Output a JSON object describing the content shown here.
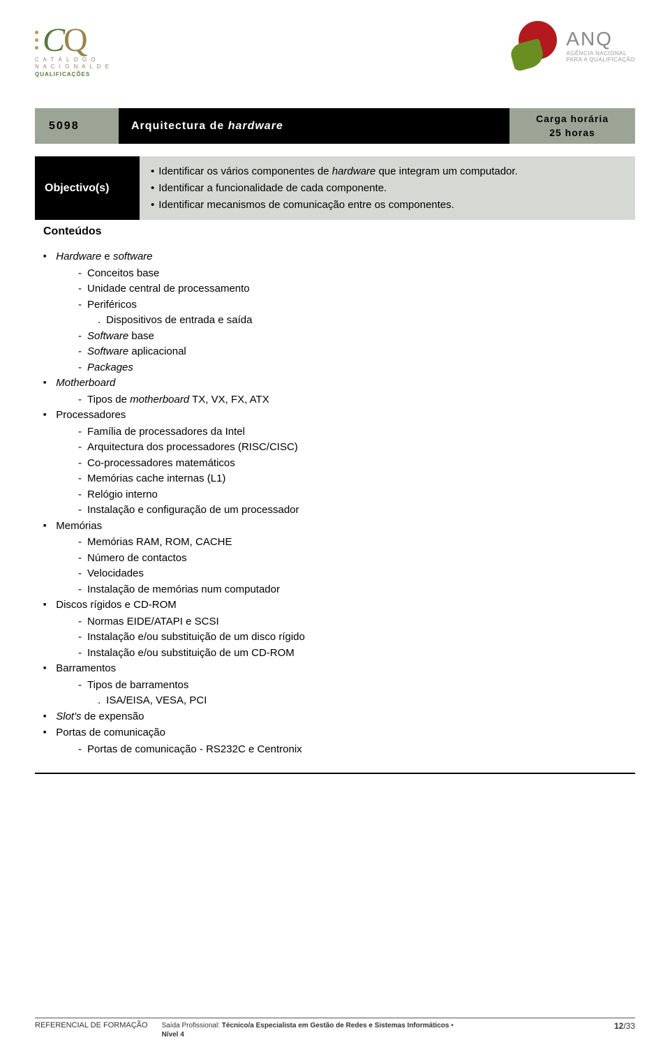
{
  "logo_left": {
    "line1": "C A T Á L O G O",
    "line2": "N A C I O N A L   D E",
    "line3": "QUALIFICAÇÕES"
  },
  "logo_right": {
    "title": "ANQ",
    "sub1": "AGÊNCIA NACIONAL",
    "sub2": "PARA A QUALIFICAÇÃO"
  },
  "title_bar": {
    "code": "5098",
    "title_pre": "Arquitectura de ",
    "title_it": "hardware",
    "hours_l1": "Carga horária",
    "hours_l2": "25 horas"
  },
  "objectives": {
    "label": "Objectivo(s)",
    "items": [
      {
        "pre": "Identificar os vários componentes de ",
        "it": "hardware",
        "post": " que integram um computador."
      },
      {
        "pre": "Identificar a funcionalidade de cada componente.",
        "it": "",
        "post": ""
      },
      {
        "pre": "Identificar mecanismos de comunicação entre os componentes.",
        "it": "",
        "post": ""
      }
    ]
  },
  "conteudos_label": "Conteúdos",
  "content": [
    {
      "title_it": "Hardware",
      "title_mid": " e ",
      "title_it2": "software",
      "sub": [
        {
          "t": "Conceitos base"
        },
        {
          "t": "Unidade central de processamento"
        },
        {
          "t": "Periféricos",
          "sub3": [
            {
              "t": "Dispositivos de entrada e saída"
            }
          ]
        },
        {
          "pre_it": "Software",
          "post": " base"
        },
        {
          "pre_it": "Software",
          "post": " aplicacional"
        },
        {
          "pre_it": "Packages",
          "post": ""
        }
      ]
    },
    {
      "title_it": "Motherboard",
      "sub": [
        {
          "pre": "Tipos de ",
          "mid_it": "motherboard",
          "post": " TX, VX, FX, ATX"
        }
      ]
    },
    {
      "title": "Processadores",
      "sub": [
        {
          "t": "Família de processadores da Intel"
        },
        {
          "t": "Arquitectura dos processadores (RISC/CISC)"
        },
        {
          "t": "Co-processadores matemáticos"
        },
        {
          "t": "Memórias cache internas (L1)"
        },
        {
          "t": "Relógio interno"
        },
        {
          "t": "Instalação e configuração de um processador"
        }
      ]
    },
    {
      "title": "Memórias",
      "sub": [
        {
          "t": "Memórias RAM, ROM, CACHE"
        },
        {
          "t": "Número de contactos"
        },
        {
          "t": "Velocidades"
        },
        {
          "t": "Instalação de memórias num computador"
        }
      ]
    },
    {
      "title": "Discos rígidos e CD-ROM",
      "sub": [
        {
          "t": "Normas EIDE/ATAPI e SCSI"
        },
        {
          "t": "Instalação e/ou substituição de um disco rígido"
        },
        {
          "t": "Instalação e/ou substituição de um CD-ROM"
        }
      ]
    },
    {
      "title": "Barramentos",
      "sub": [
        {
          "t": "Tipos de barramentos",
          "sub3": [
            {
              "t": "ISA/EISA, VESA, PCI"
            }
          ]
        }
      ]
    },
    {
      "title_it": "Slot's",
      "title_post": " de expensão"
    },
    {
      "title": "Portas de comunicação",
      "sub": [
        {
          "t": "Portas de comunicação - RS232C e Centronix"
        }
      ]
    }
  ],
  "footer": {
    "ref": "REFERENCIAL DE FORMAÇÃO",
    "saida_label": "Saída Profissional:",
    "saida_value": " Técnico/a Especialista em Gestão de Redes e Sistemas Informáticos ",
    "nivel": "Nível 4",
    "page": "12",
    "total": "/33"
  },
  "colors": {
    "header_band": "#9ca495",
    "obj_band": "#d6d9d3",
    "black": "#000000"
  }
}
